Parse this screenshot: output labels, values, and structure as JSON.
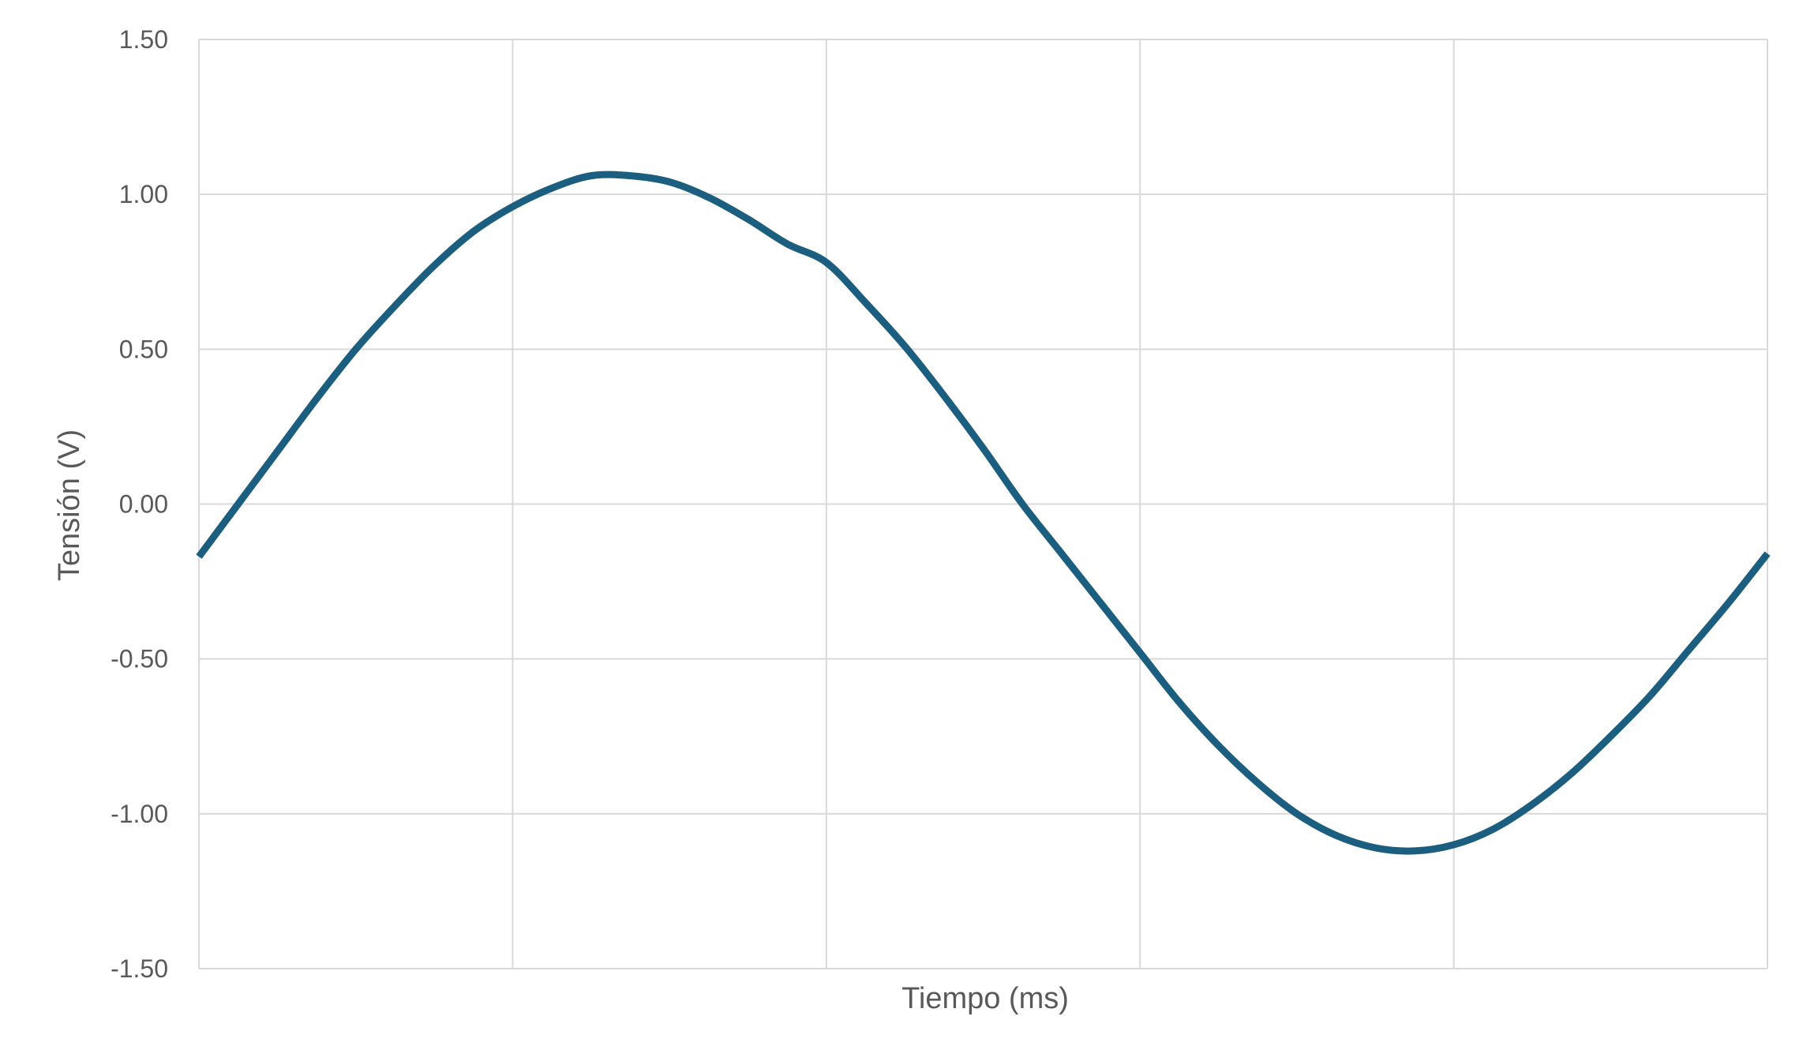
{
  "chart_data": {
    "type": "line",
    "title": "",
    "xlabel": "Tiempo (ms)",
    "ylabel": "Tensión (V)",
    "ylim": [
      -1.5,
      1.5
    ],
    "ytick_step": 0.5,
    "ytick_labels": [
      "1.50",
      "1.00",
      "0.50",
      "0.00",
      "-0.50",
      "-1.00",
      "-1.50"
    ],
    "xlim": [
      0,
      5
    ],
    "x_gridlines": [
      1,
      2,
      3,
      4
    ],
    "xtick_labels_shown": false,
    "grid": true,
    "legend": "none",
    "series": [
      {
        "color": "#1B5E80",
        "x": [
          0,
          0.125,
          0.25,
          0.375,
          0.5,
          0.625,
          0.75,
          0.875,
          1,
          1.125,
          1.25,
          1.375,
          1.5,
          1.625,
          1.75,
          1.875,
          2,
          2.125,
          2.25,
          2.375,
          2.5,
          2.625,
          2.75,
          2.875,
          3,
          3.125,
          3.25,
          3.375,
          3.5,
          3.625,
          3.75,
          3.875,
          4,
          4.125,
          4.25,
          4.375,
          4.5,
          4.625,
          4.75,
          4.875,
          5
        ],
        "y": [
          -0.17,
          0.0,
          0.17,
          0.34,
          0.5,
          0.64,
          0.77,
          0.88,
          0.96,
          1.02,
          1.06,
          1.06,
          1.04,
          0.99,
          0.92,
          0.84,
          0.78,
          0.65,
          0.51,
          0.35,
          0.18,
          0.0,
          -0.16,
          -0.32,
          -0.48,
          -0.64,
          -0.78,
          -0.9,
          -1.0,
          -1.07,
          -1.11,
          -1.12,
          -1.1,
          -1.05,
          -0.97,
          -0.87,
          -0.75,
          -0.62,
          -0.47,
          -0.32,
          -0.16
        ]
      }
    ]
  }
}
